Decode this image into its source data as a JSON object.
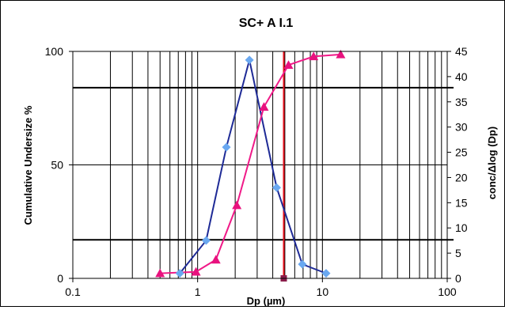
{
  "chart_data": {
    "type": "scatter",
    "title": "SC+ A I.1",
    "xlabel": "Dp (µm)",
    "ylabel_left": "Cumulative Undersize %",
    "ylabel_right": "conc/Δlog (Dp)",
    "x_scale": "log",
    "xlim": [
      0.1,
      100
    ],
    "ylim_left": [
      0,
      100
    ],
    "ylim_right": [
      0,
      45
    ],
    "x_ticks": [
      "0.1",
      "1",
      "10",
      "100"
    ],
    "y_left_ticks": [
      "0",
      "50",
      "100"
    ],
    "y_right_ticks": [
      "0",
      "5",
      "10",
      "15",
      "20",
      "25",
      "30",
      "35",
      "40",
      "45"
    ],
    "grid": "log vertical minor gridlines",
    "left_reference_lines": [
      17,
      84
    ],
    "vertical_reference_line": {
      "x": 4.9,
      "color": "#e8121e"
    },
    "series": [
      {
        "axis": "right",
        "color": "#1e2a96",
        "marker_color": "#6aa8f0",
        "marker": "diamond",
        "points": [
          {
            "x": 0.72,
            "y": 1.0
          },
          {
            "x": 1.17,
            "y": 7.5
          },
          {
            "x": 1.7,
            "y": 26.0
          },
          {
            "x": 2.6,
            "y": 43.3
          },
          {
            "x": 4.3,
            "y": 18.0
          },
          {
            "x": 6.9,
            "y": 2.8
          },
          {
            "x": 10.7,
            "y": 1.0
          }
        ]
      },
      {
        "axis": "right",
        "color": "#f01a88",
        "marker_color": "#e8127e",
        "marker": "triangle",
        "points": [
          {
            "x": 0.5,
            "y": 1.0
          },
          {
            "x": 0.97,
            "y": 1.3
          },
          {
            "x": 1.4,
            "y": 3.7
          },
          {
            "x": 2.06,
            "y": 14.5
          },
          {
            "x": 3.4,
            "y": 34.0
          },
          {
            "x": 5.35,
            "y": 42.3
          },
          {
            "x": 8.5,
            "y": 44.0
          },
          {
            "x": 14,
            "y": 44.4
          }
        ]
      }
    ],
    "marker_on_x_axis": {
      "x": 4.9,
      "color": "#8a1c4a"
    }
  }
}
